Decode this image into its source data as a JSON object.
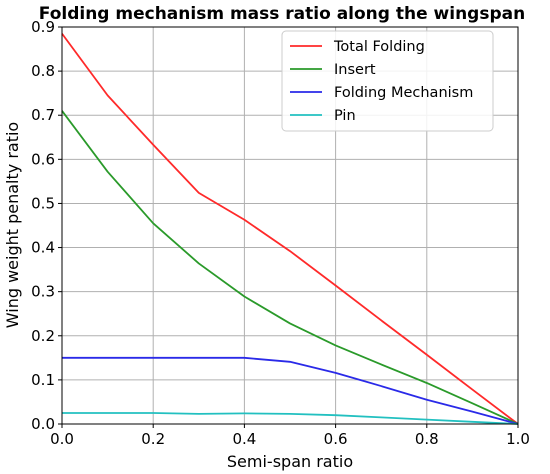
{
  "chart_data": {
    "type": "line",
    "title": "Folding mechanism mass ratio along the wingspan",
    "xlabel": "Semi-span ratio",
    "ylabel": "Wing weight penalty ratio",
    "xlim": [
      0.0,
      1.0
    ],
    "ylim": [
      0.0,
      0.9
    ],
    "xticks": [
      0.0,
      0.2,
      0.4,
      0.6,
      0.8,
      1.0
    ],
    "xtick_labels": [
      "0.0",
      "0.2",
      "0.4",
      "0.6",
      "0.8",
      "1.0"
    ],
    "yticks": [
      0.0,
      0.1,
      0.2,
      0.3,
      0.4,
      0.5,
      0.6,
      0.7,
      0.8,
      0.9
    ],
    "ytick_labels": [
      "0.0",
      "0.1",
      "0.2",
      "0.3",
      "0.4",
      "0.5",
      "0.6",
      "0.7",
      "0.8",
      "0.9"
    ],
    "grid": true,
    "legend_position": "top-right",
    "x": [
      0.0,
      0.1,
      0.2,
      0.3,
      0.4,
      0.5,
      0.6,
      0.7,
      0.8,
      0.9,
      1.0
    ],
    "series": [
      {
        "name": "Total Folding",
        "color": "#ff2a2a",
        "values": [
          0.885,
          0.745,
          0.633,
          0.524,
          0.463,
          0.392,
          0.314,
          0.235,
          0.157,
          0.078,
          0.0
        ]
      },
      {
        "name": "Insert",
        "color": "#2a9a2a",
        "values": [
          0.71,
          0.572,
          0.455,
          0.364,
          0.289,
          0.228,
          0.178,
          0.135,
          0.093,
          0.047,
          0.0
        ]
      },
      {
        "name": "Folding Mechanism",
        "color": "#2a2ae8",
        "values": [
          0.15,
          0.15,
          0.15,
          0.15,
          0.15,
          0.141,
          0.116,
          0.086,
          0.055,
          0.028,
          0.0
        ]
      },
      {
        "name": "Pin",
        "color": "#22c0c0",
        "values": [
          0.025,
          0.025,
          0.025,
          0.023,
          0.024,
          0.023,
          0.02,
          0.015,
          0.01,
          0.005,
          0.0
        ]
      }
    ]
  }
}
